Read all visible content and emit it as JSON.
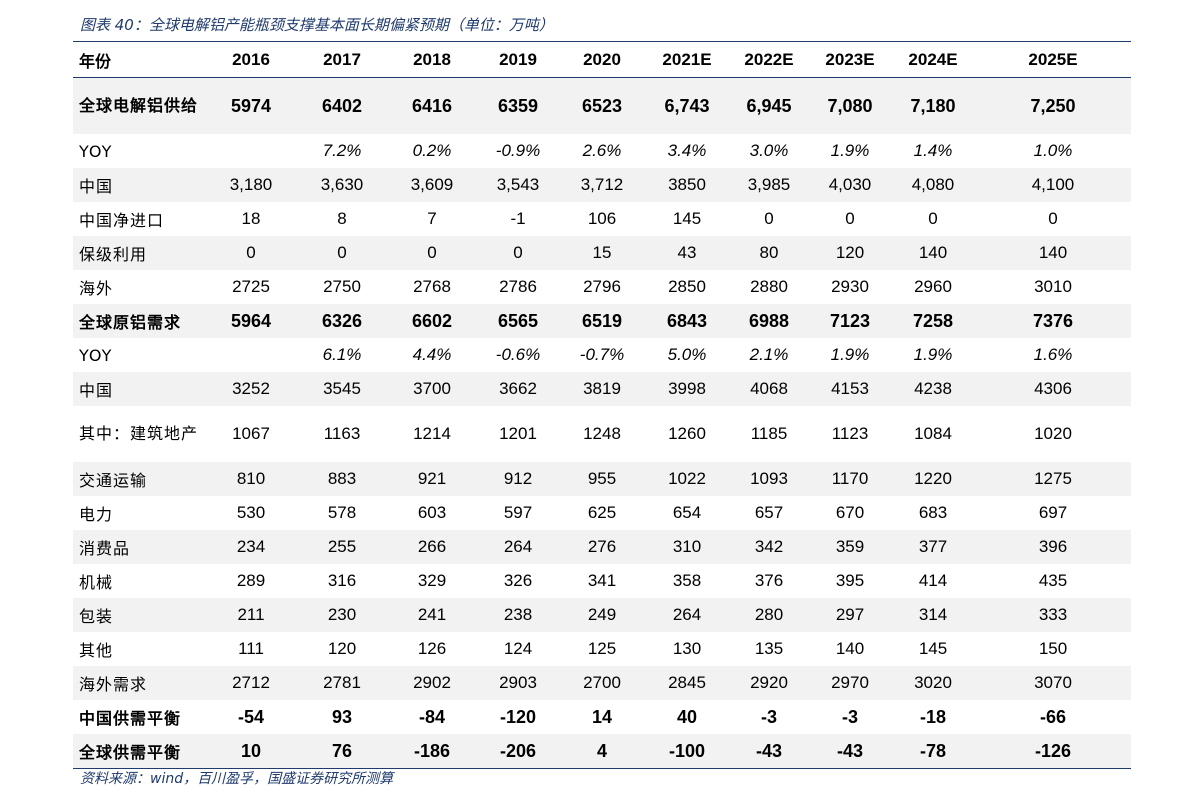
{
  "caption": "图表 40：全球电解铝产能瓶颈支撑基本面长期偏紧预期（单位：万吨）",
  "source": "资料来源：wind，百川盈孚，国盛证券研究所测算",
  "header": [
    "年份",
    "2016",
    "2017",
    "2018",
    "2019",
    "2020",
    "2021E",
    "2022E",
    "2023E",
    "2024E",
    "2025E"
  ],
  "rows": [
    {
      "label": "全球电解铝供给",
      "values": [
        "5974",
        "6402",
        "6416",
        "6359",
        "6523",
        "6,743",
        "6,945",
        "7,080",
        "7,180",
        "7,250"
      ]
    },
    {
      "label": "YOY",
      "values": [
        "",
        "7.2%",
        "0.2%",
        "-0.9%",
        "2.6%",
        "3.4%",
        "3.0%",
        "1.9%",
        "1.4%",
        "1.0%"
      ]
    },
    {
      "label": "中国",
      "values": [
        "3,180",
        "3,630",
        "3,609",
        "3,543",
        "3,712",
        "3850",
        "3,985",
        "4,030",
        "4,080",
        "4,100"
      ]
    },
    {
      "label": "中国净进口",
      "values": [
        "18",
        "8",
        "7",
        "-1",
        "106",
        "145",
        "0",
        "0",
        "0",
        "0"
      ]
    },
    {
      "label": "保级利用",
      "values": [
        "0",
        "0",
        "0",
        "0",
        "15",
        "43",
        "80",
        "120",
        "140",
        "140"
      ]
    },
    {
      "label": "海外",
      "values": [
        "2725",
        "2750",
        "2768",
        "2786",
        "2796",
        "2850",
        "2880",
        "2930",
        "2960",
        "3010"
      ]
    },
    {
      "label": "全球原铝需求",
      "values": [
        "5964",
        "6326",
        "6602",
        "6565",
        "6519",
        "6843",
        "6988",
        "7123",
        "7258",
        "7376"
      ]
    },
    {
      "label": "YOY",
      "values": [
        "",
        "6.1%",
        "4.4%",
        "-0.6%",
        "-0.7%",
        "5.0%",
        "2.1%",
        "1.9%",
        "1.9%",
        "1.6%"
      ]
    },
    {
      "label": "中国",
      "values": [
        "3252",
        "3545",
        "3700",
        "3662",
        "3819",
        "3998",
        "4068",
        "4153",
        "4238",
        "4306"
      ]
    },
    {
      "label": "其中：建筑地产",
      "values": [
        "1067",
        "1163",
        "1214",
        "1201",
        "1248",
        "1260",
        "1185",
        "1123",
        "1084",
        "1020"
      ]
    },
    {
      "label": "交通运输",
      "values": [
        "810",
        "883",
        "921",
        "912",
        "955",
        "1022",
        "1093",
        "1170",
        "1220",
        "1275"
      ]
    },
    {
      "label": "电力",
      "values": [
        "530",
        "578",
        "603",
        "597",
        "625",
        "654",
        "657",
        "670",
        "683",
        "697"
      ]
    },
    {
      "label": "消费品",
      "values": [
        "234",
        "255",
        "266",
        "264",
        "276",
        "310",
        "342",
        "359",
        "377",
        "396"
      ]
    },
    {
      "label": "机械",
      "values": [
        "289",
        "316",
        "329",
        "326",
        "341",
        "358",
        "376",
        "395",
        "414",
        "435"
      ]
    },
    {
      "label": "包装",
      "values": [
        "211",
        "230",
        "241",
        "238",
        "249",
        "264",
        "280",
        "297",
        "314",
        "333"
      ]
    },
    {
      "label": "其他",
      "values": [
        "111",
        "120",
        "126",
        "124",
        "125",
        "130",
        "135",
        "140",
        "145",
        "150"
      ]
    },
    {
      "label": "海外需求",
      "values": [
        "2712",
        "2781",
        "2902",
        "2903",
        "2700",
        "2845",
        "2920",
        "2970",
        "3020",
        "3070"
      ]
    },
    {
      "label": "中国供需平衡",
      "values": [
        "-54",
        "93",
        "-84",
        "-120",
        "14",
        "40",
        "-3",
        "-3",
        "-18",
        "-66"
      ]
    },
    {
      "label": "全球供需平衡",
      "values": [
        "10",
        "76",
        "-186",
        "-206",
        "4",
        "-100",
        "-43",
        "-43",
        "-78",
        "-126"
      ]
    }
  ]
}
